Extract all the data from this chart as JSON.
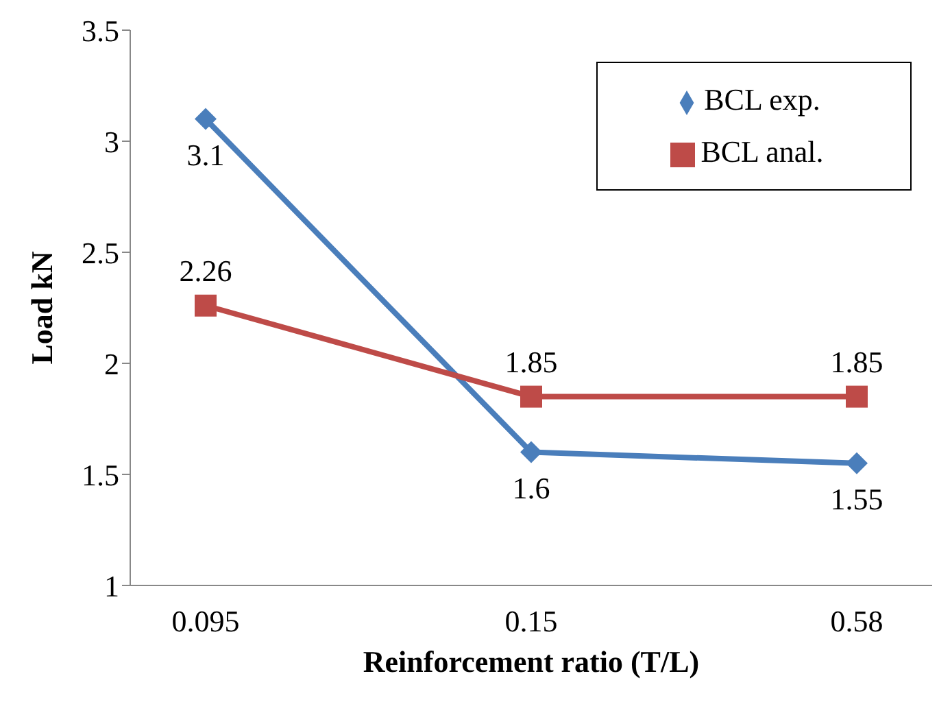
{
  "chart_data": {
    "type": "line",
    "xlabel": "Reinforcement ratio (T/L)",
    "ylabel": "Load kN",
    "categories": [
      "0.095",
      "0.15",
      "0.58"
    ],
    "series": [
      {
        "name": "BCL exp.",
        "color": "#4a7ebb",
        "values": [
          3.1,
          1.6,
          1.55
        ],
        "marker": "diamond"
      },
      {
        "name": "BCL anal.",
        "color": "#be4b48",
        "values": [
          2.26,
          1.85,
          1.85
        ],
        "marker": "square"
      }
    ],
    "ylim": [
      1,
      3.5
    ],
    "yticks": [
      1,
      1.5,
      2,
      2.5,
      3,
      3.5
    ],
    "grid": false,
    "legend": "top right",
    "data_labels": true,
    "line_style": "solid"
  }
}
